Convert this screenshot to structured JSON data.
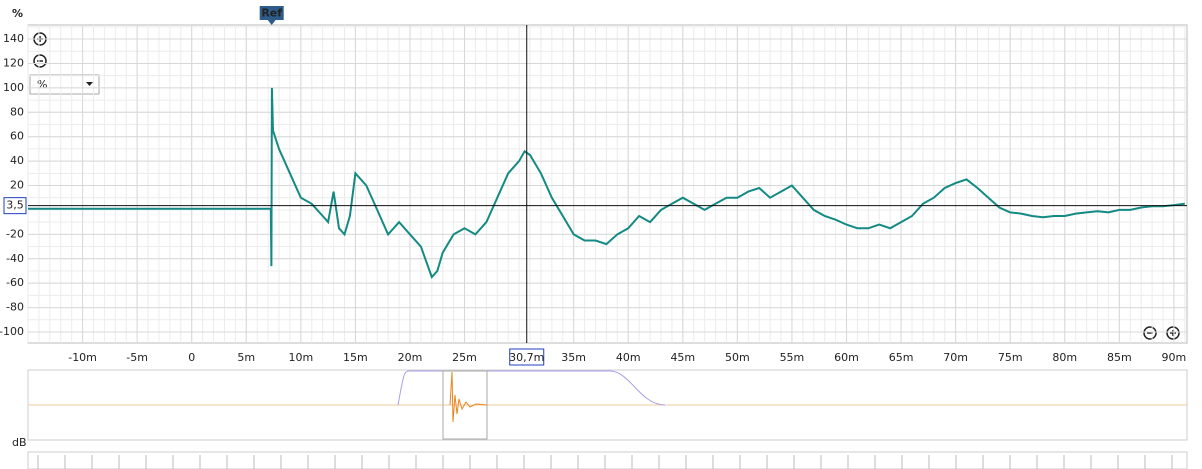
{
  "chart_data": {
    "type": "line",
    "y_unit": "%",
    "unit_selector": "%",
    "ref_label": "Ref",
    "lower_label": "dB",
    "xlim": [
      -15,
      91.2
    ],
    "ylim": [
      -109,
      151.5
    ],
    "xticks": [
      {
        "value": -10,
        "label": "-10m"
      },
      {
        "value": -5,
        "label": "-5m"
      },
      0,
      {
        "value": 5,
        "label": "5m"
      },
      {
        "value": 10,
        "label": "10m"
      },
      {
        "value": 15,
        "label": "15m"
      },
      {
        "value": 20,
        "label": "20m"
      },
      {
        "value": 25,
        "label": "25m"
      },
      {
        "value": 35,
        "label": "35m"
      },
      {
        "value": 40,
        "label": "40m"
      },
      {
        "value": 45,
        "label": "45m"
      },
      {
        "value": 50,
        "label": "50m"
      },
      {
        "value": 55,
        "label": "55m"
      },
      {
        "value": 60,
        "label": "60m"
      },
      {
        "value": 65,
        "label": "65m"
      },
      {
        "value": 70,
        "label": "70m"
      },
      {
        "value": 75,
        "label": "75m"
      },
      {
        "value": 80,
        "label": "80m"
      },
      {
        "value": 85,
        "label": "85m"
      },
      {
        "value": 90,
        "label": "90m"
      }
    ],
    "yticks": [
      140,
      120,
      100,
      80,
      60,
      40,
      20,
      -20,
      -40,
      -60,
      -80,
      -100
    ],
    "ref_x": 7.33,
    "cursor": {
      "x": 30.7,
      "x_label": "30,7m",
      "y": 3.5,
      "y_label": "3,5"
    },
    "grid": true,
    "series": [
      {
        "color": "#138a83",
        "x": [
          -15,
          -10,
          -5,
          0,
          5,
          7.25,
          7.3,
          7.35,
          7.45,
          8,
          9,
          10,
          11,
          12,
          12.5,
          13,
          13.5,
          14,
          14.5,
          15,
          16,
          17,
          18,
          19,
          20,
          21,
          22,
          22.5,
          23,
          24,
          25,
          26,
          27,
          28,
          29,
          30,
          30.5,
          31,
          32,
          33,
          34,
          35,
          36,
          37,
          38,
          39,
          40,
          41,
          42,
          43,
          44,
          45,
          46,
          47,
          48,
          49,
          50,
          51,
          52,
          53,
          54,
          55,
          56,
          57,
          58,
          59,
          60,
          61,
          62,
          63,
          64,
          65,
          66,
          67,
          68,
          69,
          70,
          71,
          72,
          73,
          74,
          75,
          76,
          77,
          78,
          79,
          80,
          81,
          82,
          83,
          84,
          85,
          86,
          87,
          88,
          89,
          90,
          91
        ],
        "values": [
          1,
          1,
          1,
          1,
          1,
          1,
          -46,
          100,
          65,
          50,
          30,
          10,
          5,
          -5,
          -10,
          15,
          -15,
          -20,
          -5,
          30,
          20,
          0,
          -20,
          -10,
          -20,
          -30,
          -55,
          -50,
          -35,
          -20,
          -15,
          -20,
          -10,
          10,
          30,
          40,
          48,
          45,
          30,
          10,
          -5,
          -20,
          -25,
          -25,
          -28,
          -20,
          -15,
          -5,
          -10,
          0,
          5,
          10,
          5,
          0,
          5,
          10,
          10,
          15,
          18,
          10,
          15,
          20,
          10,
          0,
          -5,
          -8,
          -12,
          -15,
          -15,
          -12,
          -15,
          -10,
          -5,
          5,
          10,
          18,
          22,
          25,
          18,
          10,
          2,
          -2,
          -3,
          -5,
          -6,
          -5,
          -5,
          -3,
          -2,
          -1,
          -2,
          0,
          0,
          2,
          3,
          3,
          4,
          5
        ]
      }
    ]
  }
}
